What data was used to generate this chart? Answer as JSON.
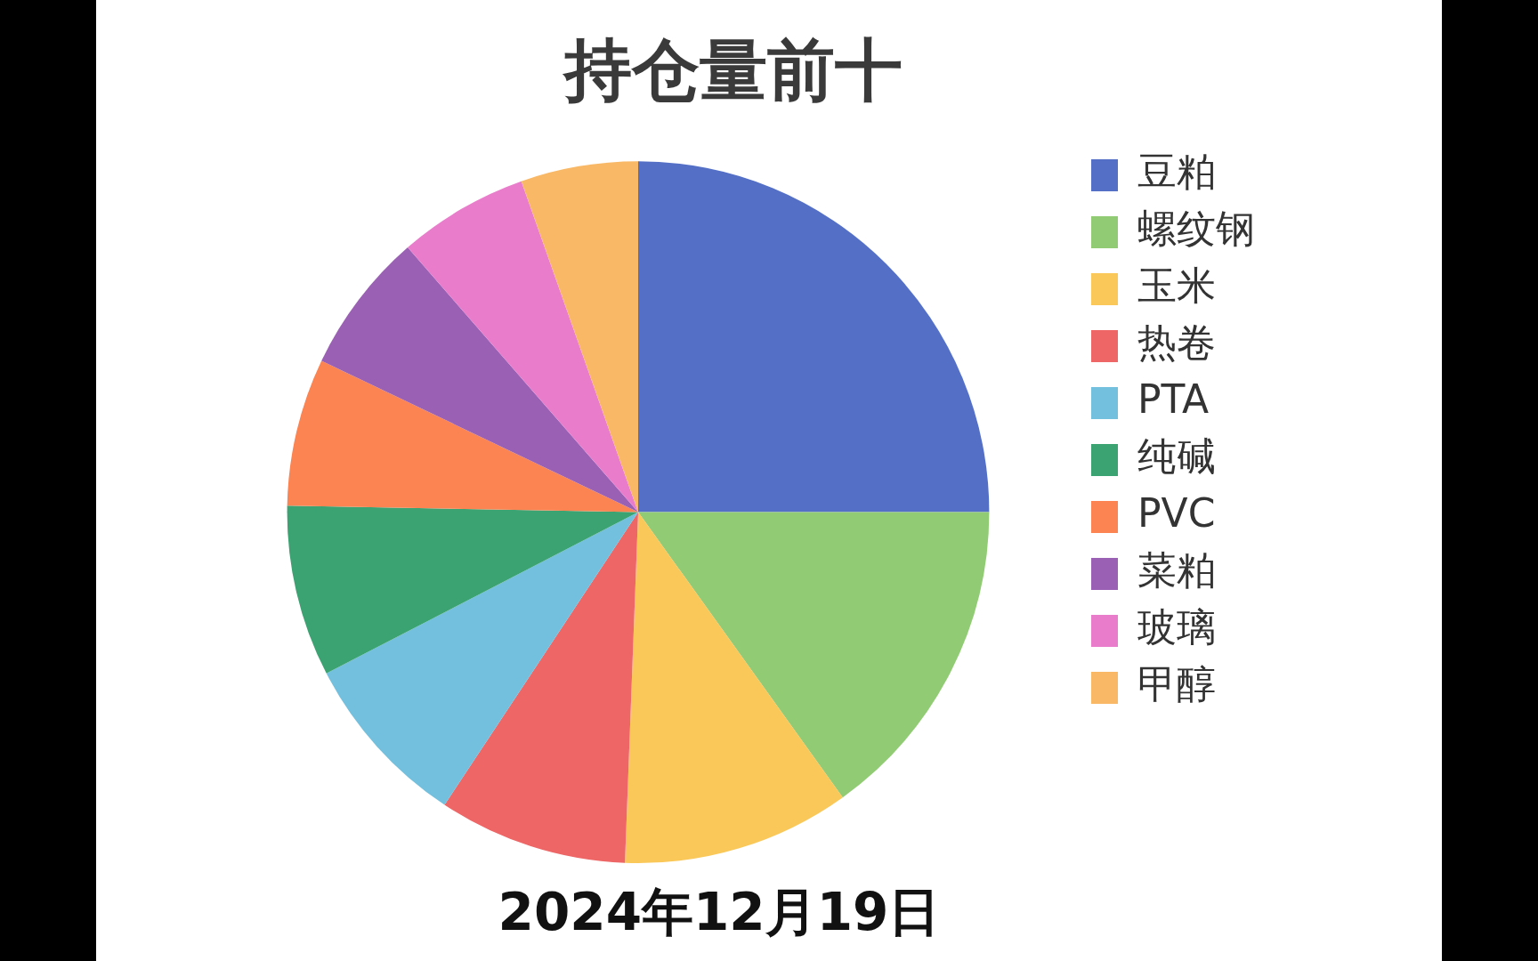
{
  "chart_data": {
    "type": "pie",
    "title": "持仓量前十",
    "categories": [
      "豆粕",
      "螺纹钢",
      "玉米",
      "热卷",
      "PTA",
      "纯碱",
      "PVC",
      "菜粕",
      "玻璃",
      "甲醇"
    ],
    "values": [
      25.0,
      15.1,
      10.5,
      8.7,
      8.1,
      7.9,
      6.8,
      6.5,
      6.0,
      5.4
    ],
    "colors": [
      "#5470c6",
      "#91cc75",
      "#fac858",
      "#ee6666",
      "#73c0de",
      "#3ba272",
      "#fc8452",
      "#9a60b4",
      "#ea7ccc",
      "#f9b865"
    ],
    "legend": "right",
    "annotations": [
      "2024年12月19日"
    ]
  }
}
